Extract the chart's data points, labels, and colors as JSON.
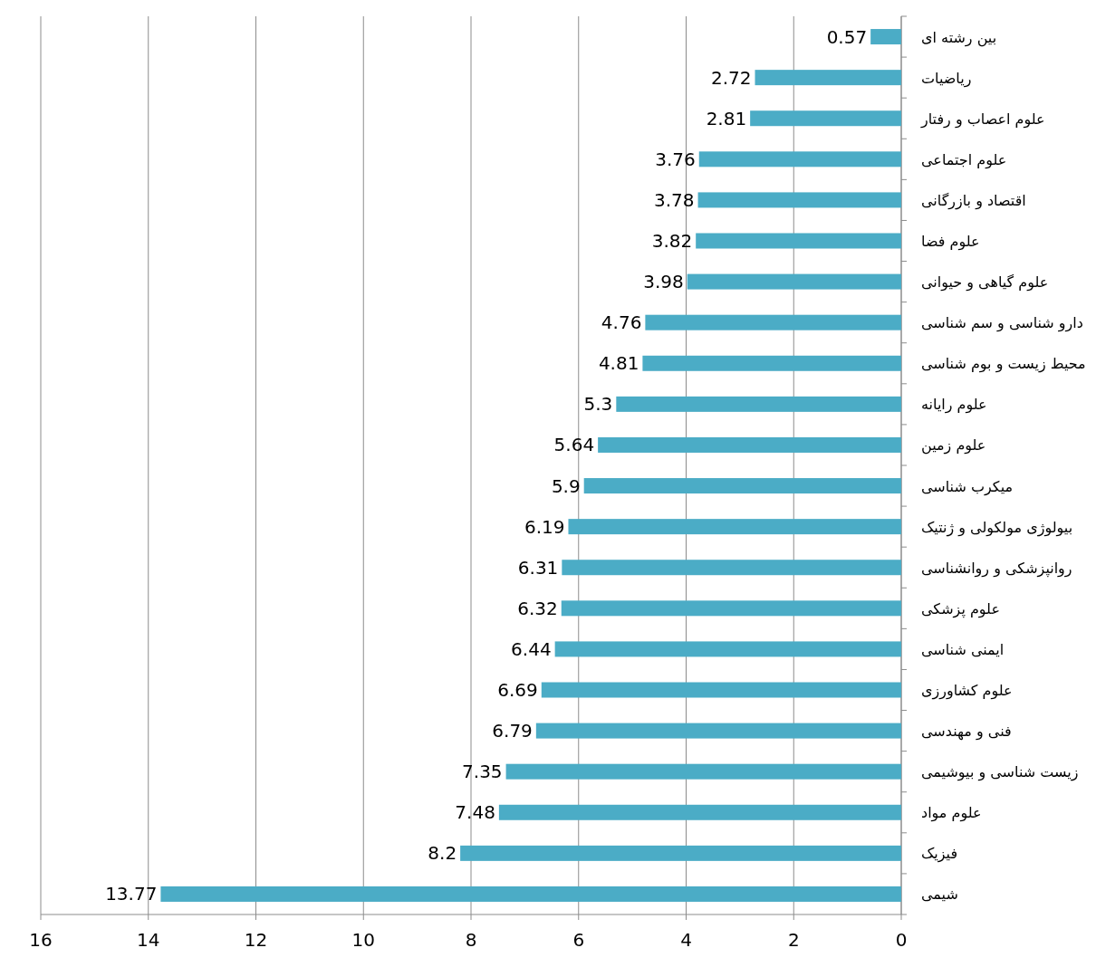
{
  "chart_data": {
    "type": "bar",
    "orientation": "horizontal",
    "categories": [
      "بین رشته ای",
      "ریاضیات",
      "علوم اعصاب و رفتار",
      "علوم اجتماعی",
      "اقتصاد و بازرگانی",
      "علوم فضا",
      "علوم گیاهی و حیوانی",
      "دارو شناسی و سم شناسی",
      "محیط زیست و بوم شناسی",
      "علوم رایانه",
      "علوم زمین",
      "میکرب شناسی",
      "بیولوژی مولکولی و ژنتیک",
      "روانپزشکی و روانشناسی",
      "علوم پزشکی",
      "ایمنی شناسی",
      "علوم کشاورزی",
      "فنی و مهندسی",
      "زیست شناسی و بیوشیمی",
      "علوم مواد",
      "فیزیک",
      "شیمی"
    ],
    "values": [
      0.57,
      2.72,
      2.81,
      3.76,
      3.78,
      3.82,
      3.98,
      4.76,
      4.81,
      5.3,
      5.64,
      5.9,
      6.19,
      6.31,
      6.32,
      6.44,
      6.69,
      6.79,
      7.35,
      7.48,
      8.2,
      13.77
    ],
    "color": "#4bacc6",
    "xlim": [
      16,
      0
    ],
    "xticks": [
      16,
      14,
      12,
      10,
      8,
      6,
      4,
      2,
      0
    ],
    "grid": "x",
    "data_labels": true
  }
}
